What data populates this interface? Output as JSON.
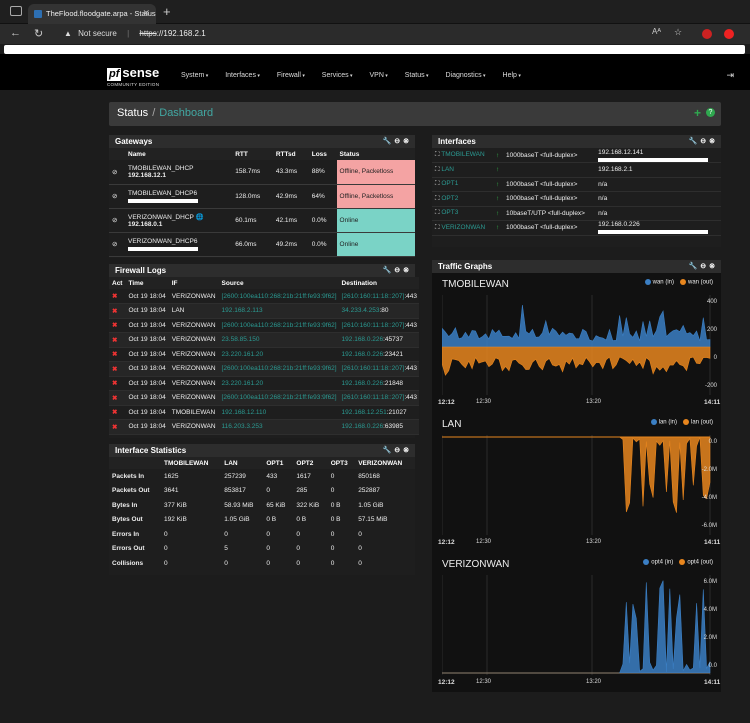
{
  "browser": {
    "tab_title": "TheFlood.floodgate.arpa - Status",
    "not_secure": "Not secure",
    "url_prefix": "https",
    "url_rest": "://192.168.2.1"
  },
  "nav": {
    "logo_pf": "pf",
    "logo_sense": "sense",
    "logo_edition": "COMMUNITY EDITION",
    "items": [
      "System",
      "Interfaces",
      "Firewall",
      "Services",
      "VPN",
      "Status",
      "Diagnostics",
      "Help"
    ]
  },
  "breadcrumb": {
    "status": "Status",
    "sep": "/",
    "page": "Dashboard"
  },
  "gateways": {
    "title": "Gateways",
    "headers": [
      "Name",
      "RTT",
      "RTTsd",
      "Loss",
      "Status"
    ],
    "rows": [
      {
        "name": "TMOBILEWAN_DHCP",
        "ip": "192.168.12.1",
        "rtt": "158.7ms",
        "rttsd": "43.3ms",
        "loss": "88%",
        "status": "Offline, Packetloss",
        "state": "off"
      },
      {
        "name": "TMOBILEWAN_DHCP6",
        "ip": "",
        "rtt": "128.0ms",
        "rttsd": "42.9ms",
        "loss": "64%",
        "status": "Offline, Packetloss",
        "state": "off"
      },
      {
        "name": "VERIZONWAN_DHCP",
        "ip": "192.168.0.1",
        "rtt": "60.1ms",
        "rttsd": "42.1ms",
        "loss": "0.0%",
        "status": "Online",
        "state": "on"
      },
      {
        "name": "VERIZONWAN_DHCP6",
        "ip": "",
        "rtt": "66.0ms",
        "rttsd": "49.2ms",
        "loss": "0.0%",
        "status": "Online",
        "state": "on"
      }
    ]
  },
  "firewall_logs": {
    "title": "Firewall Logs",
    "headers": [
      "Act",
      "Time",
      "IF",
      "Source",
      "Destination"
    ],
    "rows": [
      {
        "time": "Oct 19 18:04",
        "if": "VERIZONWAN",
        "src": "[2600:100ea110:268:21b:21ff:fe93:9f62]",
        "dst": "[2610:160:11:18::207]",
        "port": ":443"
      },
      {
        "time": "Oct 19 18:04",
        "if": "LAN",
        "src": "192.168.2.113",
        "dst": "34.233.4.253",
        "port": ":80"
      },
      {
        "time": "Oct 19 18:04",
        "if": "VERIZONWAN",
        "src": "[2600:100ea110:268:21b:21ff:fe93:9f62]",
        "dst": "[2610:160:11:18::207]",
        "port": ":443"
      },
      {
        "time": "Oct 19 18:04",
        "if": "VERIZONWAN",
        "src": "23.58.85.150",
        "dst": "192.168.0.226",
        "port": ":45737"
      },
      {
        "time": "Oct 19 18:04",
        "if": "VERIZONWAN",
        "src": "23.220.161.20",
        "dst": "192.168.0.226",
        "port": ":23421"
      },
      {
        "time": "Oct 19 18:04",
        "if": "VERIZONWAN",
        "src": "[2600:100ea110:268:21b:21ff:fe93:9f62]",
        "dst": "[2610:160:11:18::207]",
        "port": ":443"
      },
      {
        "time": "Oct 19 18:04",
        "if": "VERIZONWAN",
        "src": "23.220.161.20",
        "dst": "192.168.0.226",
        "port": ":21848"
      },
      {
        "time": "Oct 19 18:04",
        "if": "VERIZONWAN",
        "src": "[2600:100ea110:268:21b:21ff:fe93:9f62]",
        "dst": "[2610:160:11:18::207]",
        "port": ":443"
      },
      {
        "time": "Oct 19 18:04",
        "if": "TMOBILEWAN",
        "src": "192.168.12.110",
        "dst": "192.168.12.251",
        "port": ":21027"
      },
      {
        "time": "Oct 19 18:04",
        "if": "VERIZONWAN",
        "src": "116.203.3.253",
        "dst": "192.168.0.226",
        "port": ":63985"
      }
    ]
  },
  "interface_stats": {
    "title": "Interface Statistics",
    "headers": [
      "",
      "TMOBILEWAN",
      "LAN",
      "OPT1",
      "OPT2",
      "OPT3",
      "VERIZONWAN"
    ],
    "rows": [
      [
        "Packets In",
        "1625",
        "257239",
        "433",
        "1617",
        "0",
        "850168"
      ],
      [
        "Packets Out",
        "3641",
        "853817",
        "0",
        "285",
        "0",
        "252887"
      ],
      [
        "Bytes In",
        "377 KiB",
        "58.93 MiB",
        "65 KiB",
        "322 KiB",
        "0 B",
        "1.05 GiB"
      ],
      [
        "Bytes Out",
        "192 KiB",
        "1.05 GiB",
        "0 B",
        "0 B",
        "0 B",
        "57.15 MiB"
      ],
      [
        "Errors In",
        "0",
        "0",
        "0",
        "0",
        "0",
        "0"
      ],
      [
        "Errors Out",
        "0",
        "5",
        "0",
        "0",
        "0",
        "0"
      ],
      [
        "Collisions",
        "0",
        "0",
        "0",
        "0",
        "0",
        "0"
      ]
    ]
  },
  "interfaces": {
    "title": "Interfaces",
    "rows": [
      {
        "name": "TMOBILEWAN",
        "media": "1000baseT <full-duplex>",
        "ip": "192.168.12.141",
        "up": true,
        "masked": true
      },
      {
        "name": "LAN",
        "media": "",
        "ip": "192.168.2.1",
        "up": true,
        "masked": false
      },
      {
        "name": "OPT1",
        "media": "1000baseT <full-duplex>",
        "ip": "n/a",
        "up": true,
        "masked": false
      },
      {
        "name": "OPT2",
        "media": "1000baseT <full-duplex>",
        "ip": "n/a",
        "up": true,
        "masked": false
      },
      {
        "name": "OPT3",
        "media": "10baseT/UTP <full-duplex>",
        "ip": "n/a",
        "up": true,
        "masked": false
      },
      {
        "name": "VERIZONWAN",
        "media": "1000baseT <full-duplex>",
        "ip": "192.168.0.226",
        "up": true,
        "masked": true
      }
    ]
  },
  "traffic": {
    "title": "Traffic Graphs",
    "colors": {
      "in": "#3b7fc4",
      "out": "#e8861e"
    },
    "graphs": [
      {
        "name": "TMOBILEWAN",
        "legend_in": "wan (in)",
        "legend_out": "wan (out)",
        "ticks": [
          "400",
          "200",
          "0",
          "-200"
        ],
        "x_ticks": [
          "12:12",
          "12:30",
          "13:20",
          "14:11"
        ]
      },
      {
        "name": "LAN",
        "legend_in": "lan (in)",
        "legend_out": "lan (out)",
        "ticks": [
          "0.0",
          "-2.0M",
          "-4.0M",
          "-6.0M"
        ],
        "x_ticks": [
          "12:12",
          "12:30",
          "13:20",
          "14:11"
        ]
      },
      {
        "name": "VERIZONWAN",
        "legend_in": "opt4 (in)",
        "legend_out": "opt4 (out)",
        "ticks": [
          "6.0M",
          "4.0M",
          "2.0M",
          "0.0"
        ],
        "x_ticks": [
          "12:12",
          "12:30",
          "13:20",
          "14:11"
        ]
      }
    ]
  }
}
